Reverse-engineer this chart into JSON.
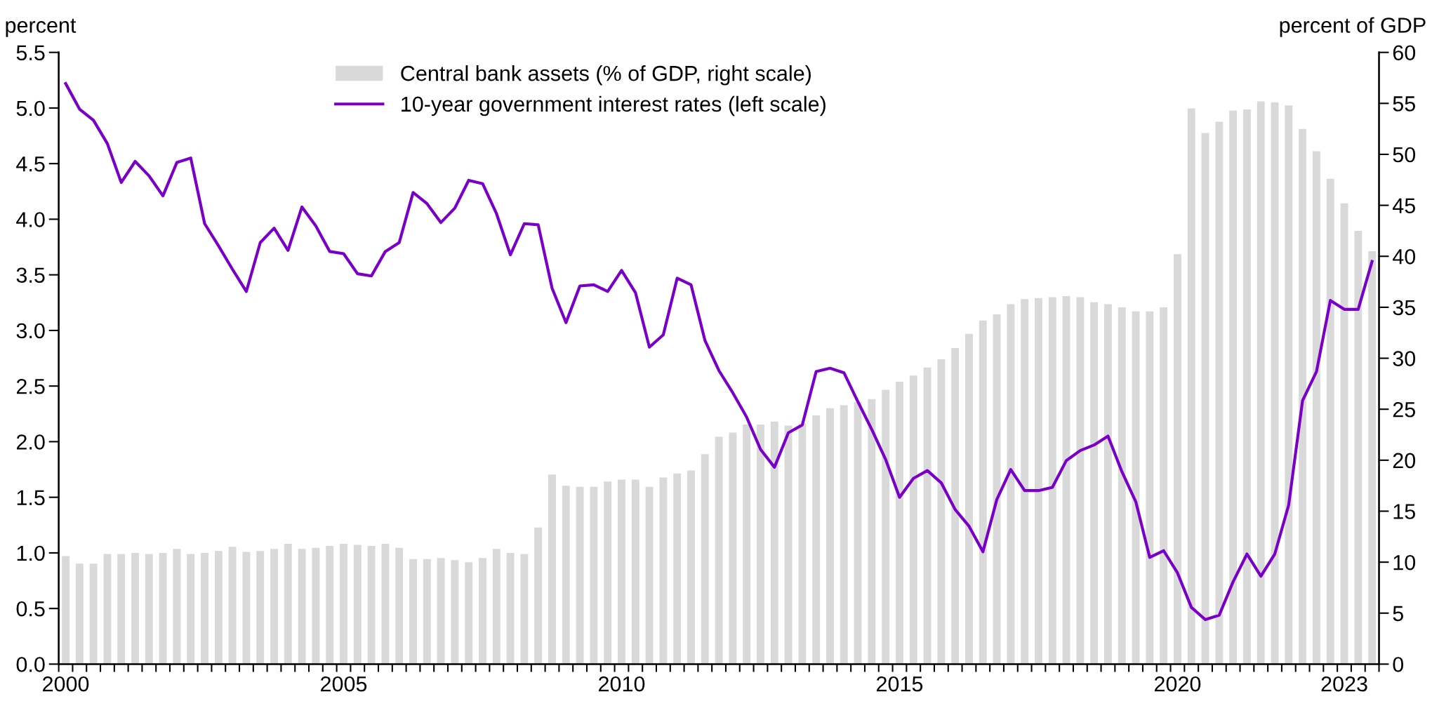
{
  "chart_data": {
    "type": "bar",
    "categories": [
      "2000",
      null,
      null,
      null,
      null,
      null,
      null,
      null,
      null,
      null,
      null,
      null,
      null,
      null,
      null,
      null,
      null,
      null,
      null,
      null,
      "2005",
      null,
      null,
      null,
      null,
      null,
      null,
      null,
      null,
      null,
      null,
      null,
      null,
      null,
      null,
      null,
      null,
      null,
      null,
      null,
      "2010",
      null,
      null,
      null,
      null,
      null,
      null,
      null,
      null,
      null,
      null,
      null,
      null,
      null,
      null,
      null,
      null,
      null,
      null,
      null,
      "2015",
      null,
      null,
      null,
      null,
      null,
      null,
      null,
      null,
      null,
      null,
      null,
      null,
      null,
      null,
      null,
      null,
      null,
      null,
      null,
      "2020",
      null,
      null,
      null,
      null,
      null,
      null,
      null,
      null,
      null,
      null,
      null,
      "2023",
      null,
      null
    ],
    "series": [
      {
        "name": "Central bank assets (% of GDP, right scale)",
        "axis": "y2",
        "color": "#d9d9d9",
        "values": [
          10.6,
          9.85,
          9.85,
          10.8,
          10.8,
          10.9,
          10.8,
          10.9,
          11.3,
          10.8,
          10.9,
          11.1,
          11.5,
          11.0,
          11.1,
          11.3,
          11.8,
          11.3,
          11.4,
          11.6,
          11.8,
          11.7,
          11.6,
          11.8,
          11.4,
          10.3,
          10.3,
          10.4,
          10.2,
          10.0,
          10.4,
          11.3,
          10.9,
          10.8,
          13.4,
          18.6,
          17.5,
          17.4,
          17.4,
          17.9,
          18.1,
          18.1,
          17.4,
          18.3,
          18.7,
          19.0,
          20.6,
          22.3,
          22.7,
          23.5,
          23.5,
          23.8,
          23.4,
          23.6,
          24.4,
          25.1,
          25.4,
          25.7,
          26.0,
          26.9,
          27.7,
          28.3,
          29.1,
          29.9,
          31.0,
          32.4,
          33.7,
          34.3,
          35.3,
          35.8,
          35.9,
          36.0,
          36.1,
          36.0,
          35.5,
          35.3,
          35.0,
          34.6,
          34.6,
          35.0,
          40.2,
          54.5,
          52.1,
          53.2,
          54.3,
          54.4,
          55.2,
          55.1,
          54.8,
          52.5,
          50.3,
          47.6,
          45.2,
          42.5,
          40.5
        ]
      },
      {
        "name": "10-year government interest rates (left scale)",
        "type": "line",
        "color": "#7a00c8",
        "values": [
          5.22,
          4.99,
          4.89,
          4.68,
          4.33,
          4.52,
          4.39,
          4.21,
          4.51,
          4.55,
          3.96,
          3.76,
          3.55,
          3.35,
          3.79,
          3.92,
          3.72,
          4.11,
          3.94,
          3.71,
          3.69,
          3.51,
          3.49,
          3.71,
          3.79,
          4.24,
          4.14,
          3.97,
          4.1,
          4.35,
          4.32,
          4.05,
          3.68,
          3.96,
          3.95,
          3.38,
          3.07,
          3.4,
          3.41,
          3.35,
          3.54,
          3.34,
          2.85,
          2.96,
          3.47,
          3.41,
          2.91,
          2.64,
          2.44,
          2.22,
          1.93,
          1.77,
          2.08,
          2.15,
          2.63,
          2.66,
          2.62,
          2.36,
          2.11,
          1.84,
          1.5,
          1.67,
          1.74,
          1.63,
          1.39,
          1.24,
          1.01,
          1.48,
          1.75,
          1.56,
          1.56,
          1.59,
          1.83,
          1.92,
          1.97,
          2.05,
          1.73,
          1.46,
          0.96,
          1.02,
          0.82,
          0.51,
          0.4,
          0.44,
          0.74,
          0.99,
          0.79,
          0.99,
          1.43,
          2.37,
          2.63,
          3.27,
          3.19,
          3.19,
          3.62
        ]
      }
    ],
    "ylabel": "percent",
    "y2label": "percent of GDP",
    "ylim": [
      0,
      5.5
    ],
    "yticks": [
      {
        "value": 0,
        "label": "0.0"
      },
      0.5,
      {
        "value": 1,
        "label": "1.0"
      },
      1.5,
      {
        "value": 2,
        "label": "2.0"
      },
      2.5,
      {
        "value": 3,
        "label": "3.0"
      },
      3.5,
      {
        "value": 4,
        "label": "4.0"
      },
      4.5,
      {
        "value": 5,
        "label": "5.0"
      },
      5.5
    ],
    "y2lim": [
      0,
      60
    ],
    "y2ticks": [
      0,
      5,
      10,
      15,
      20,
      25,
      30,
      35,
      40,
      45,
      50,
      55,
      60
    ],
    "legend": "top left",
    "grid": false
  }
}
